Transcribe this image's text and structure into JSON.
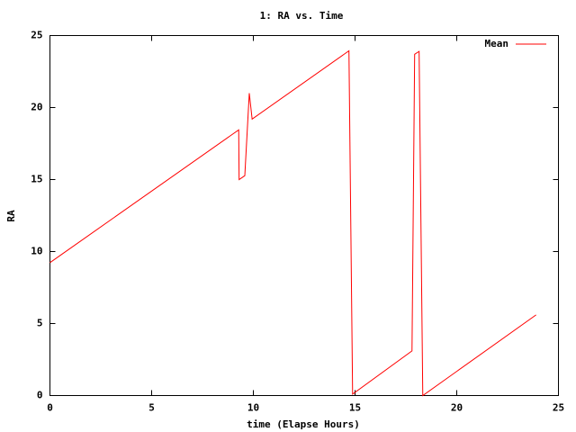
{
  "chart_data": {
    "type": "line",
    "title": "1: RA vs. Time",
    "x_label": "time (Elapse Hours)",
    "y_label": "RA",
    "x": [
      0,
      9.28,
      9.3,
      9.58,
      9.8,
      9.94,
      14.7,
      14.88,
      17.8,
      17.93,
      18.15,
      18.33,
      23.9
    ],
    "series": [
      {
        "name": "Mean",
        "color": "#ff0000",
        "values": [
          9.23,
          18.45,
          15.0,
          15.27,
          21.0,
          19.2,
          23.94,
          0.1,
          3.1,
          23.7,
          23.9,
          0.0,
          5.6
        ]
      }
    ],
    "xlim": [
      0,
      25
    ],
    "ylim": [
      0,
      25
    ],
    "xticks": [
      0,
      5,
      10,
      15,
      20,
      25
    ],
    "yticks": [
      0,
      5,
      10,
      15,
      20,
      25
    ],
    "legend": "top-right"
  }
}
